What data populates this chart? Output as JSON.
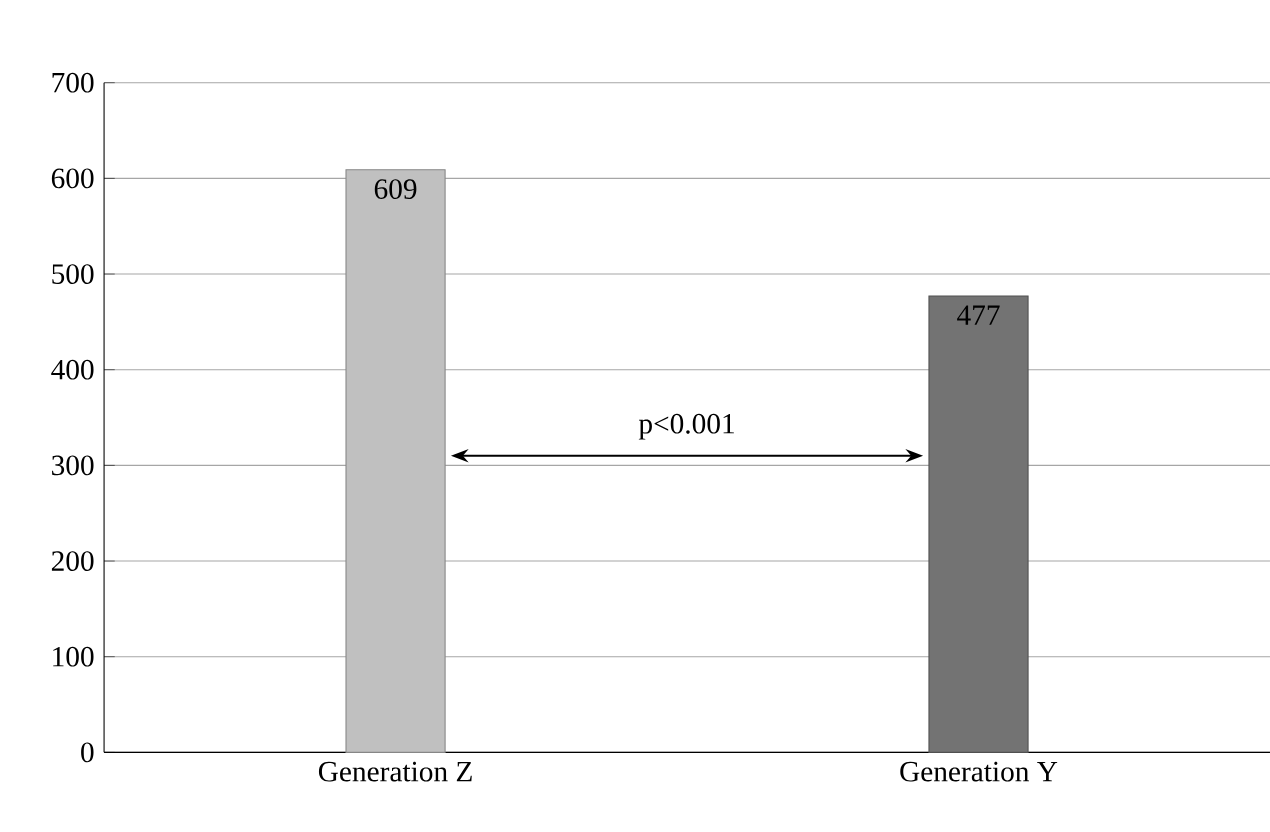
{
  "chart_data": {
    "type": "bar",
    "categories": [
      "Generation Z",
      "Generation Y"
    ],
    "values": [
      609,
      477
    ],
    "colors": [
      "#c0c0c0",
      "#737373"
    ],
    "ylim": [
      0,
      700
    ],
    "yticks": [
      0,
      100,
      200,
      300,
      400,
      500,
      600,
      700
    ],
    "grid": "y",
    "data_labels": true,
    "annotations": [
      "p<0.001"
    ]
  }
}
